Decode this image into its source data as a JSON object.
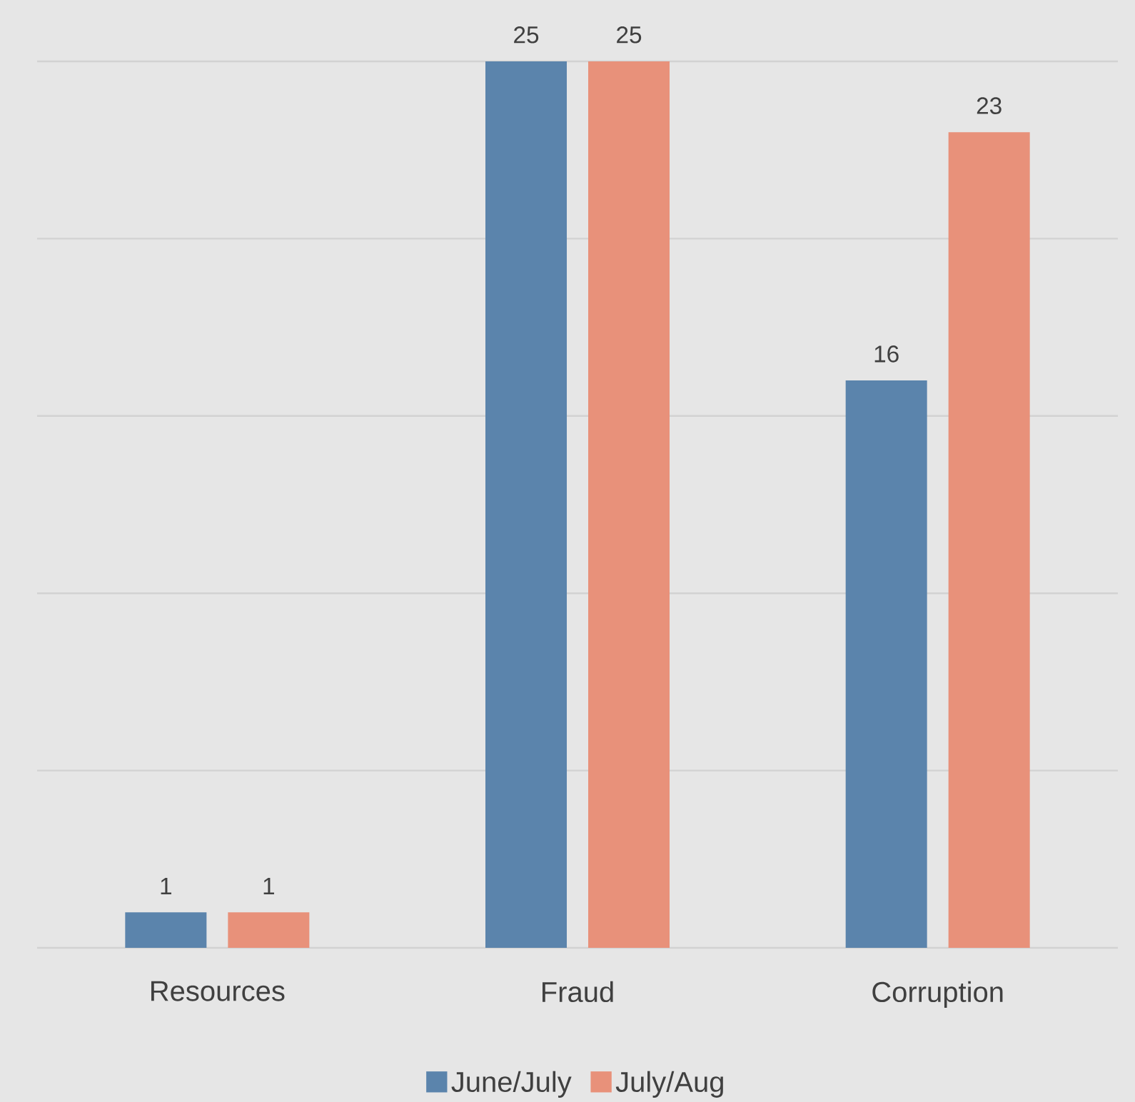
{
  "chart_data": {
    "type": "bar",
    "categories": [
      "Resources",
      "Fraud",
      "Corruption"
    ],
    "series": [
      {
        "name": "June/July",
        "color": "#5b84ac",
        "values": [
          1,
          25,
          16
        ]
      },
      {
        "name": "July/Aug",
        "color": "#e8917a",
        "values": [
          1,
          25,
          23
        ]
      }
    ],
    "ylim": [
      0,
      25
    ],
    "yticks": [
      {
        "value": 0,
        "label": null
      },
      {
        "value": 5,
        "label": null
      },
      {
        "value": 10,
        "label": null
      },
      {
        "value": 15,
        "label": null
      },
      {
        "value": 20,
        "label": null
      },
      {
        "value": 25,
        "label": null
      }
    ],
    "grid": "y",
    "legend": "bottom",
    "data_labels": true,
    "tick_labels": "x"
  }
}
